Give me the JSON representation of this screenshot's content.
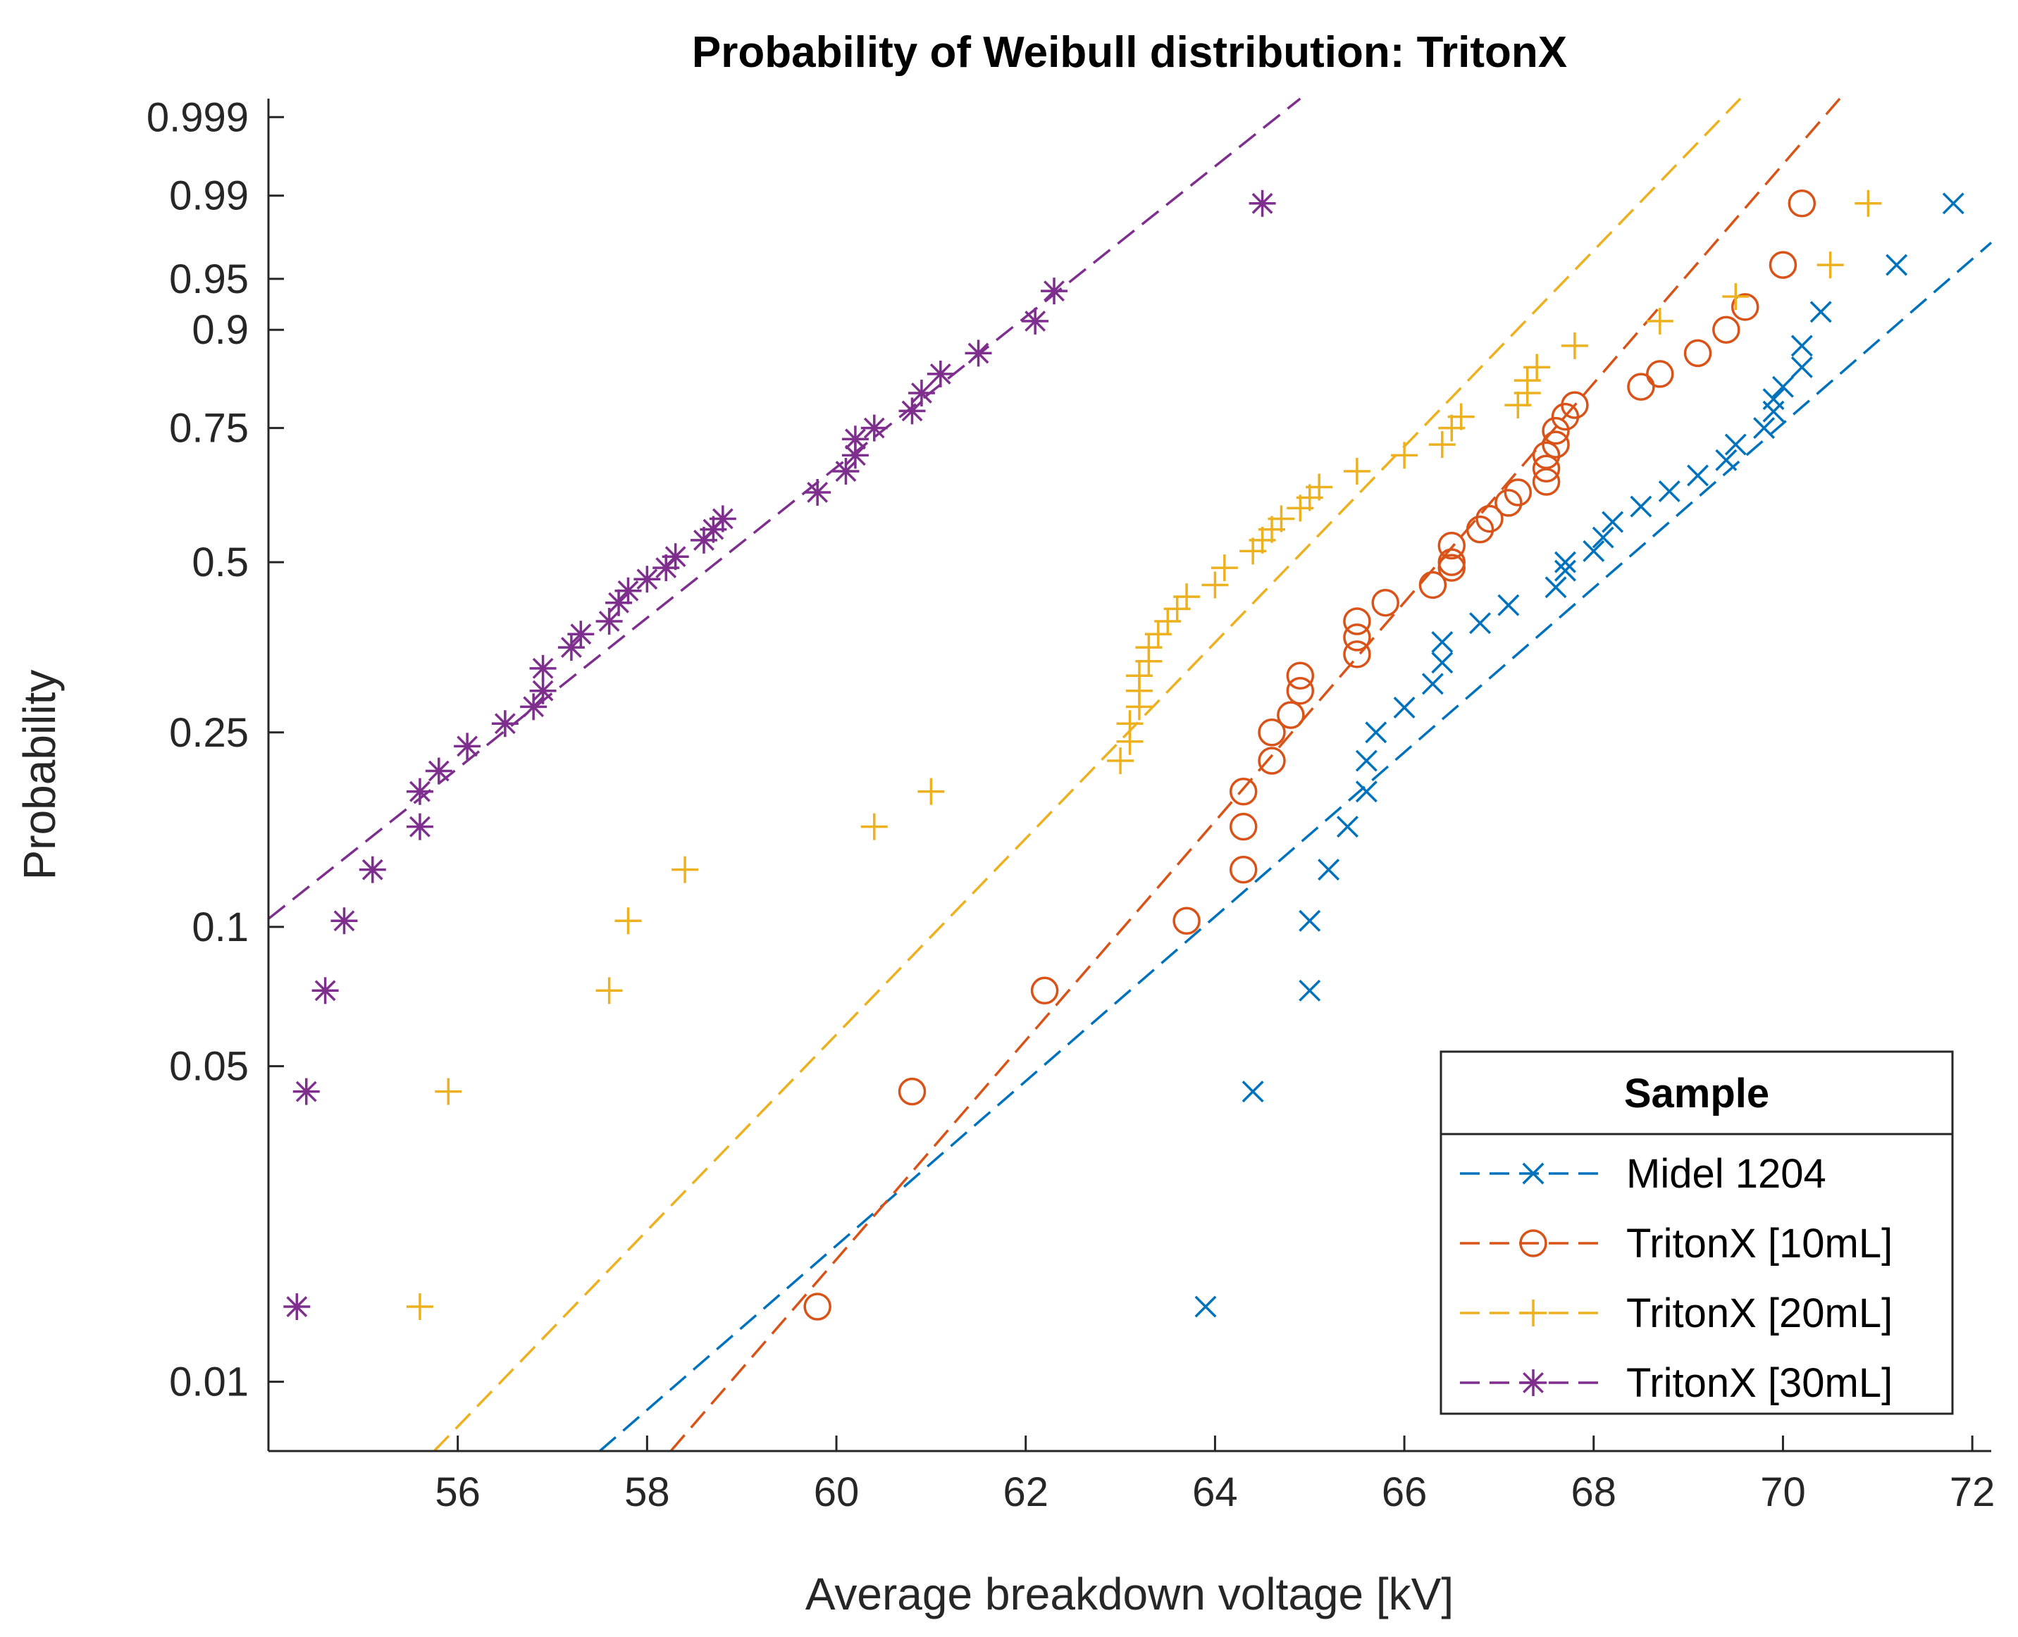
{
  "chart_data": {
    "type": "scatter",
    "title": "Probability of Weibull distribution: TritonX",
    "xlabel": "Average breakdown voltage [kV]",
    "ylabel": "Probability",
    "xlim": [
      54.0,
      72.2
    ],
    "ylim": [
      0.007,
      0.9995
    ],
    "x_ticks": [
      56,
      58,
      60,
      62,
      64,
      66,
      68,
      70,
      72
    ],
    "x_tick_labels": [
      "56",
      "58",
      "60",
      "62",
      "64",
      "66",
      "68",
      "70",
      "72"
    ],
    "y_ticks": [
      0.01,
      0.05,
      0.1,
      0.25,
      0.5,
      0.75,
      0.9,
      0.95,
      0.99,
      0.999
    ],
    "y_tick_labels": [
      "0.01",
      "0.05",
      "0.1",
      "0.25",
      "0.5",
      "0.75",
      "0.9",
      "0.95",
      "0.99",
      "0.999"
    ],
    "grid": false,
    "legend": {
      "title": "Sample",
      "position": "bottom-right"
    },
    "series": [
      {
        "name": "Midel 1204",
        "color": "#0072BD",
        "marker": "x",
        "fit_line": [
          [
            57.5,
            0.007
          ],
          [
            72.2,
            0.973
          ]
        ],
        "points": [
          [
            63.9,
            0.0147
          ],
          [
            64.4,
            0.044
          ],
          [
            65.0,
            0.073
          ],
          [
            65.0,
            0.103
          ],
          [
            65.2,
            0.132
          ],
          [
            65.4,
            0.162
          ],
          [
            65.6,
            0.191
          ],
          [
            65.6,
            0.22
          ],
          [
            65.7,
            0.25
          ],
          [
            66.0,
            0.279
          ],
          [
            66.3,
            0.309
          ],
          [
            66.4,
            0.338
          ],
          [
            66.4,
            0.368
          ],
          [
            66.8,
            0.397
          ],
          [
            67.1,
            0.426
          ],
          [
            67.6,
            0.456
          ],
          [
            67.7,
            0.485
          ],
          [
            67.7,
            0.5
          ],
          [
            68.0,
            0.52
          ],
          [
            68.1,
            0.545
          ],
          [
            68.2,
            0.574
          ],
          [
            68.5,
            0.603
          ],
          [
            68.8,
            0.632
          ],
          [
            69.1,
            0.662
          ],
          [
            69.4,
            0.691
          ],
          [
            69.5,
            0.72
          ],
          [
            69.8,
            0.75
          ],
          [
            69.9,
            0.779
          ],
          [
            69.9,
            0.8
          ],
          [
            70.0,
            0.82
          ],
          [
            70.2,
            0.85
          ],
          [
            70.2,
            0.88
          ],
          [
            70.4,
            0.92
          ],
          [
            71.2,
            0.96
          ],
          [
            71.8,
            0.988
          ]
        ]
      },
      {
        "name": "TritonX [10mL]",
        "color": "#D95319",
        "marker": "o",
        "fit_line": [
          [
            58.25,
            0.007
          ],
          [
            70.6,
            0.9995
          ]
        ],
        "points": [
          [
            59.8,
            0.0147
          ],
          [
            60.8,
            0.044
          ],
          [
            62.2,
            0.073
          ],
          [
            63.7,
            0.103
          ],
          [
            64.3,
            0.132
          ],
          [
            64.3,
            0.162
          ],
          [
            64.3,
            0.191
          ],
          [
            64.6,
            0.22
          ],
          [
            64.6,
            0.25
          ],
          [
            64.8,
            0.27
          ],
          [
            64.9,
            0.3
          ],
          [
            64.9,
            0.32
          ],
          [
            65.5,
            0.35
          ],
          [
            65.5,
            0.375
          ],
          [
            65.5,
            0.4
          ],
          [
            65.8,
            0.43
          ],
          [
            66.3,
            0.46
          ],
          [
            66.5,
            0.49
          ],
          [
            66.5,
            0.5
          ],
          [
            66.5,
            0.53
          ],
          [
            66.8,
            0.56
          ],
          [
            66.9,
            0.58
          ],
          [
            67.1,
            0.61
          ],
          [
            67.2,
            0.63
          ],
          [
            67.5,
            0.65
          ],
          [
            67.5,
            0.675
          ],
          [
            67.5,
            0.7
          ],
          [
            67.6,
            0.72
          ],
          [
            67.6,
            0.745
          ],
          [
            67.7,
            0.77
          ],
          [
            67.8,
            0.79
          ],
          [
            68.5,
            0.82
          ],
          [
            68.7,
            0.84
          ],
          [
            69.1,
            0.87
          ],
          [
            69.4,
            0.9
          ],
          [
            69.6,
            0.925
          ],
          [
            70.0,
            0.96
          ],
          [
            70.2,
            0.988
          ]
        ]
      },
      {
        "name": "TritonX [20mL]",
        "color": "#EDB120",
        "marker": "+",
        "fit_line": [
          [
            55.75,
            0.007
          ],
          [
            69.55,
            0.9995
          ]
        ],
        "points": [
          [
            55.6,
            0.0147
          ],
          [
            55.9,
            0.044
          ],
          [
            57.6,
            0.073
          ],
          [
            57.8,
            0.103
          ],
          [
            58.4,
            0.132
          ],
          [
            60.4,
            0.162
          ],
          [
            61.0,
            0.191
          ],
          [
            63.0,
            0.22
          ],
          [
            63.1,
            0.24
          ],
          [
            63.1,
            0.26
          ],
          [
            63.2,
            0.28
          ],
          [
            63.2,
            0.3
          ],
          [
            63.2,
            0.32
          ],
          [
            63.3,
            0.34
          ],
          [
            63.3,
            0.36
          ],
          [
            63.4,
            0.38
          ],
          [
            63.5,
            0.4
          ],
          [
            63.6,
            0.42
          ],
          [
            63.7,
            0.44
          ],
          [
            64.0,
            0.46
          ],
          [
            64.1,
            0.49
          ],
          [
            64.4,
            0.52
          ],
          [
            64.5,
            0.54
          ],
          [
            64.6,
            0.56
          ],
          [
            64.7,
            0.58
          ],
          [
            64.9,
            0.6
          ],
          [
            65.0,
            0.62
          ],
          [
            65.1,
            0.64
          ],
          [
            65.5,
            0.67
          ],
          [
            66.0,
            0.7
          ],
          [
            66.4,
            0.72
          ],
          [
            66.5,
            0.75
          ],
          [
            66.6,
            0.77
          ],
          [
            67.2,
            0.79
          ],
          [
            67.3,
            0.81
          ],
          [
            67.3,
            0.83
          ],
          [
            67.4,
            0.85
          ],
          [
            67.8,
            0.88
          ],
          [
            68.7,
            0.91
          ],
          [
            69.5,
            0.935
          ],
          [
            70.5,
            0.96
          ],
          [
            70.9,
            0.988
          ]
        ]
      },
      {
        "name": "TritonX [30mL]",
        "color": "#7E2F8E",
        "marker": "*",
        "fit_line": [
          [
            54.0,
            0.104
          ],
          [
            64.9,
            0.9995
          ]
        ],
        "points": [
          [
            54.3,
            0.0147
          ],
          [
            54.4,
            0.044
          ],
          [
            54.6,
            0.073
          ],
          [
            54.8,
            0.103
          ],
          [
            55.1,
            0.132
          ],
          [
            55.6,
            0.162
          ],
          [
            55.6,
            0.191
          ],
          [
            55.8,
            0.21
          ],
          [
            56.1,
            0.235
          ],
          [
            56.5,
            0.26
          ],
          [
            56.8,
            0.28
          ],
          [
            56.9,
            0.3
          ],
          [
            56.9,
            0.33
          ],
          [
            57.2,
            0.36
          ],
          [
            57.3,
            0.38
          ],
          [
            57.6,
            0.4
          ],
          [
            57.7,
            0.43
          ],
          [
            57.8,
            0.45
          ],
          [
            58.0,
            0.47
          ],
          [
            58.2,
            0.49
          ],
          [
            58.3,
            0.51
          ],
          [
            58.6,
            0.54
          ],
          [
            58.7,
            0.56
          ],
          [
            58.8,
            0.58
          ],
          [
            59.8,
            0.63
          ],
          [
            60.1,
            0.67
          ],
          [
            60.2,
            0.7
          ],
          [
            60.2,
            0.73
          ],
          [
            60.4,
            0.75
          ],
          [
            60.8,
            0.78
          ],
          [
            60.9,
            0.81
          ],
          [
            61.1,
            0.84
          ],
          [
            61.5,
            0.87
          ],
          [
            62.1,
            0.91
          ],
          [
            62.3,
            0.94
          ],
          [
            64.5,
            0.988
          ]
        ]
      }
    ]
  }
}
